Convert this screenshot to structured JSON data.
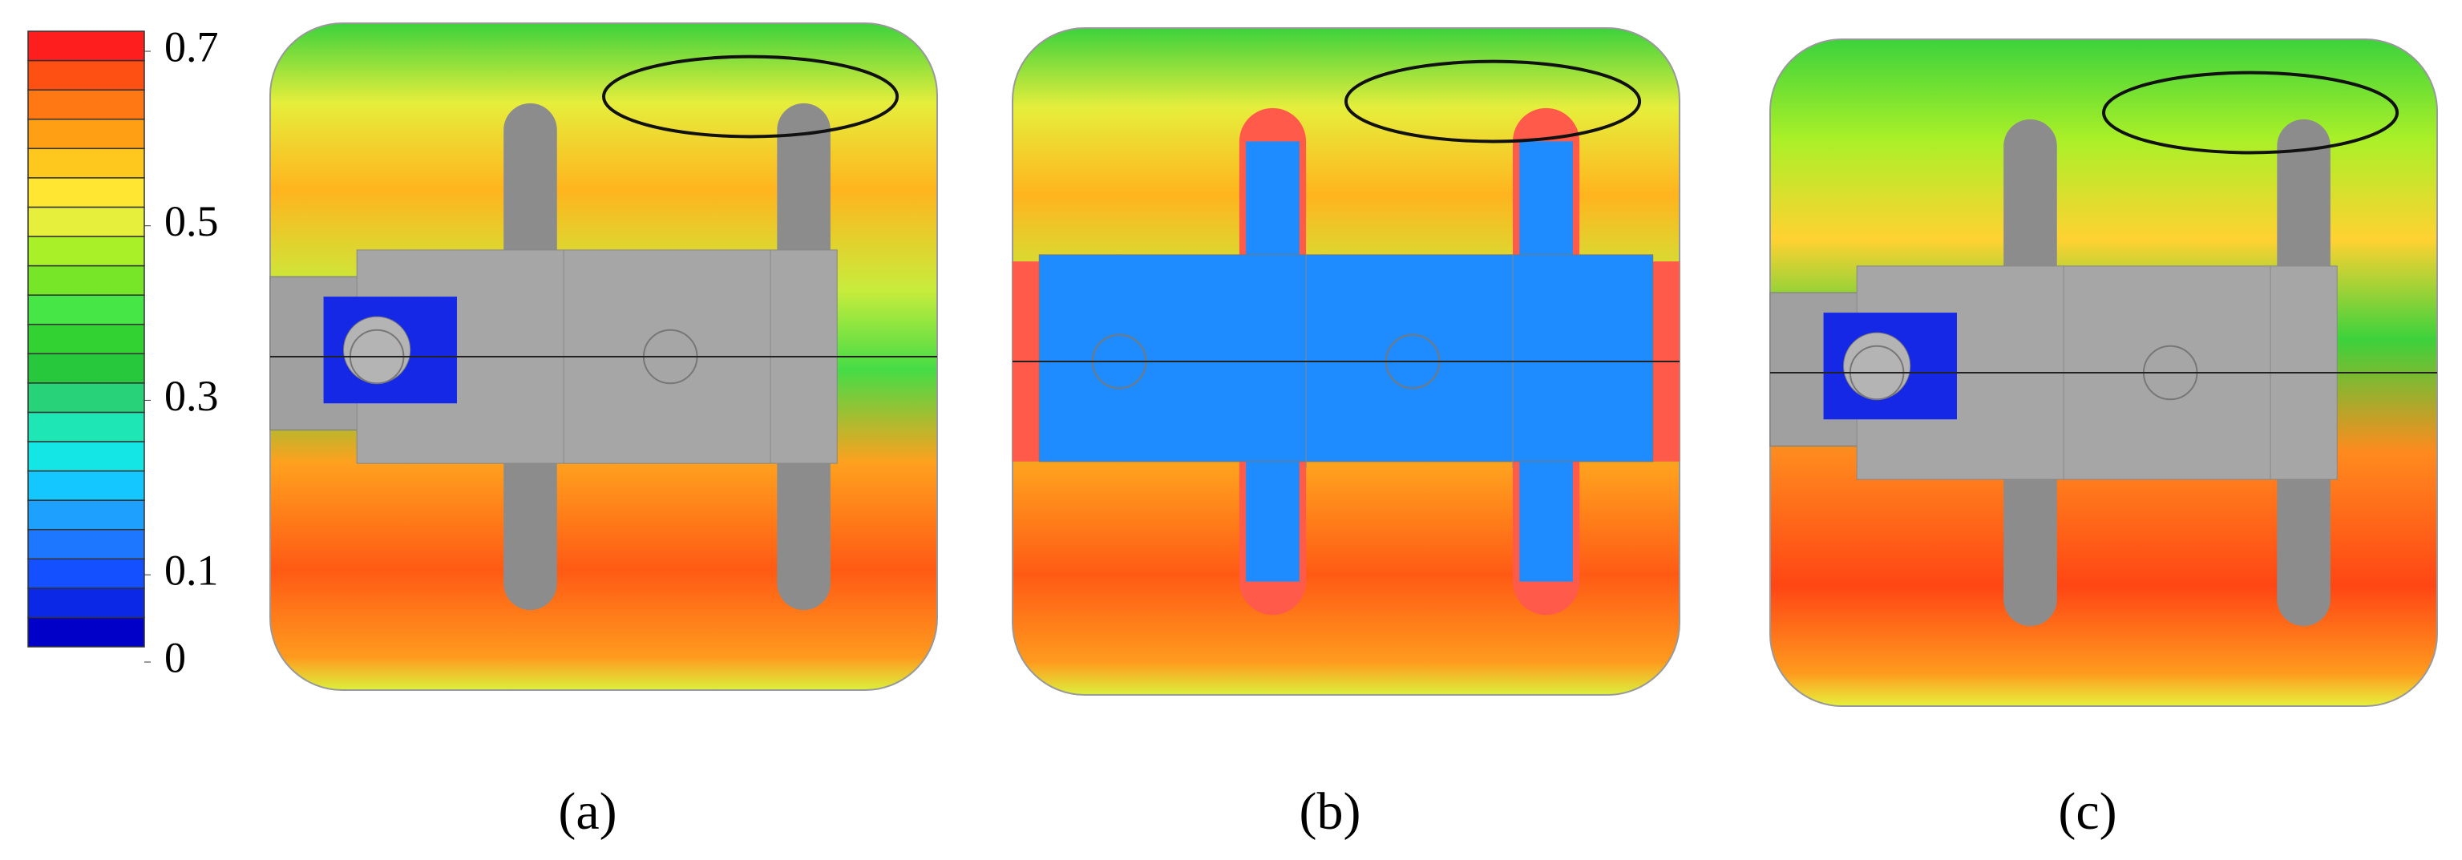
{
  "colorbar": {
    "range": [
      0,
      0.7
    ],
    "ticks": [
      0,
      0.1,
      0.3,
      0.5,
      0.7
    ],
    "colors": [
      "#0000c8",
      "#0a28e6",
      "#1450ff",
      "#1e78ff",
      "#1ea0ff",
      "#14c8ff",
      "#14e6e6",
      "#1ee6b4",
      "#28d278",
      "#28c83c",
      "#32d232",
      "#46e646",
      "#78e628",
      "#aaf028",
      "#e6f03c",
      "#ffe632",
      "#ffc81e",
      "#ffa014",
      "#ff7814",
      "#ff5014",
      "#ff1e1e"
    ]
  },
  "panels": [
    {
      "label": "(a)"
    },
    {
      "label": "(b)"
    },
    {
      "label": "(c)"
    }
  ]
}
